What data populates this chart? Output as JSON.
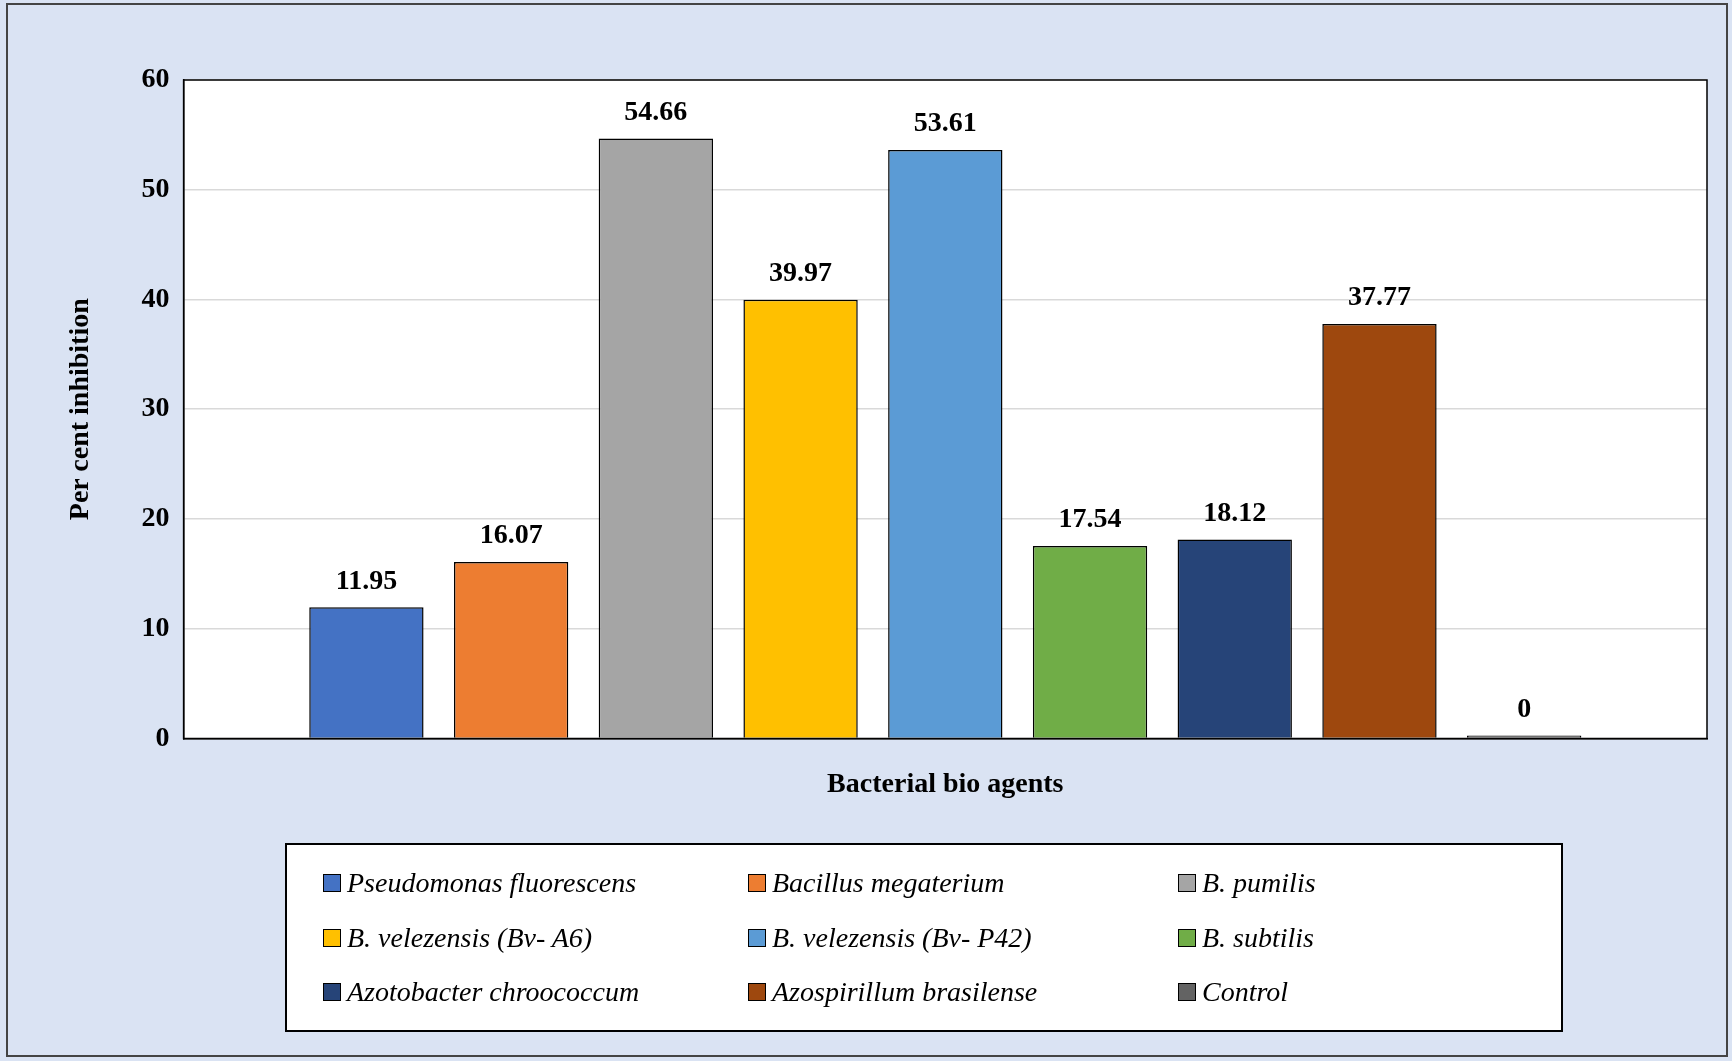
{
  "chart_data": {
    "type": "bar",
    "xlabel": "Bacterial bio agents",
    "ylabel": "Per cent inhibition",
    "categories": [
      null
    ],
    "series": [
      {
        "name": "Pseudomonas fluorescens",
        "color": "#4472c4",
        "values": [
          11.95
        ]
      },
      {
        "name": "Bacillus megaterium",
        "color": "#ed7d31",
        "values": [
          16.07
        ]
      },
      {
        "name": "B. pumilis",
        "color": "#a5a5a5",
        "values": [
          54.66
        ]
      },
      {
        "name": "B. velezensis (Bv- A6)",
        "color": "#ffc000",
        "values": [
          39.97
        ]
      },
      {
        "name": "B. velezensis (Bv- P42)",
        "color": "#5b9bd5",
        "values": [
          53.61
        ]
      },
      {
        "name": "B. subtilis",
        "color": "#70ad47",
        "values": [
          17.54
        ]
      },
      {
        "name": "Azotobacter chroococcum",
        "color": "#264478",
        "values": [
          18.12
        ]
      },
      {
        "name": "Azospirillum brasilense",
        "color": "#9e480e",
        "values": [
          37.77
        ]
      },
      {
        "name": "Control",
        "color": "#636363",
        "values": [
          0
        ]
      }
    ],
    "ylim": [
      0,
      60
    ],
    "yticks": [
      0,
      10,
      20,
      30,
      40,
      50,
      60
    ],
    "grid": "y",
    "legend": "bottom",
    "data_labels": true
  }
}
